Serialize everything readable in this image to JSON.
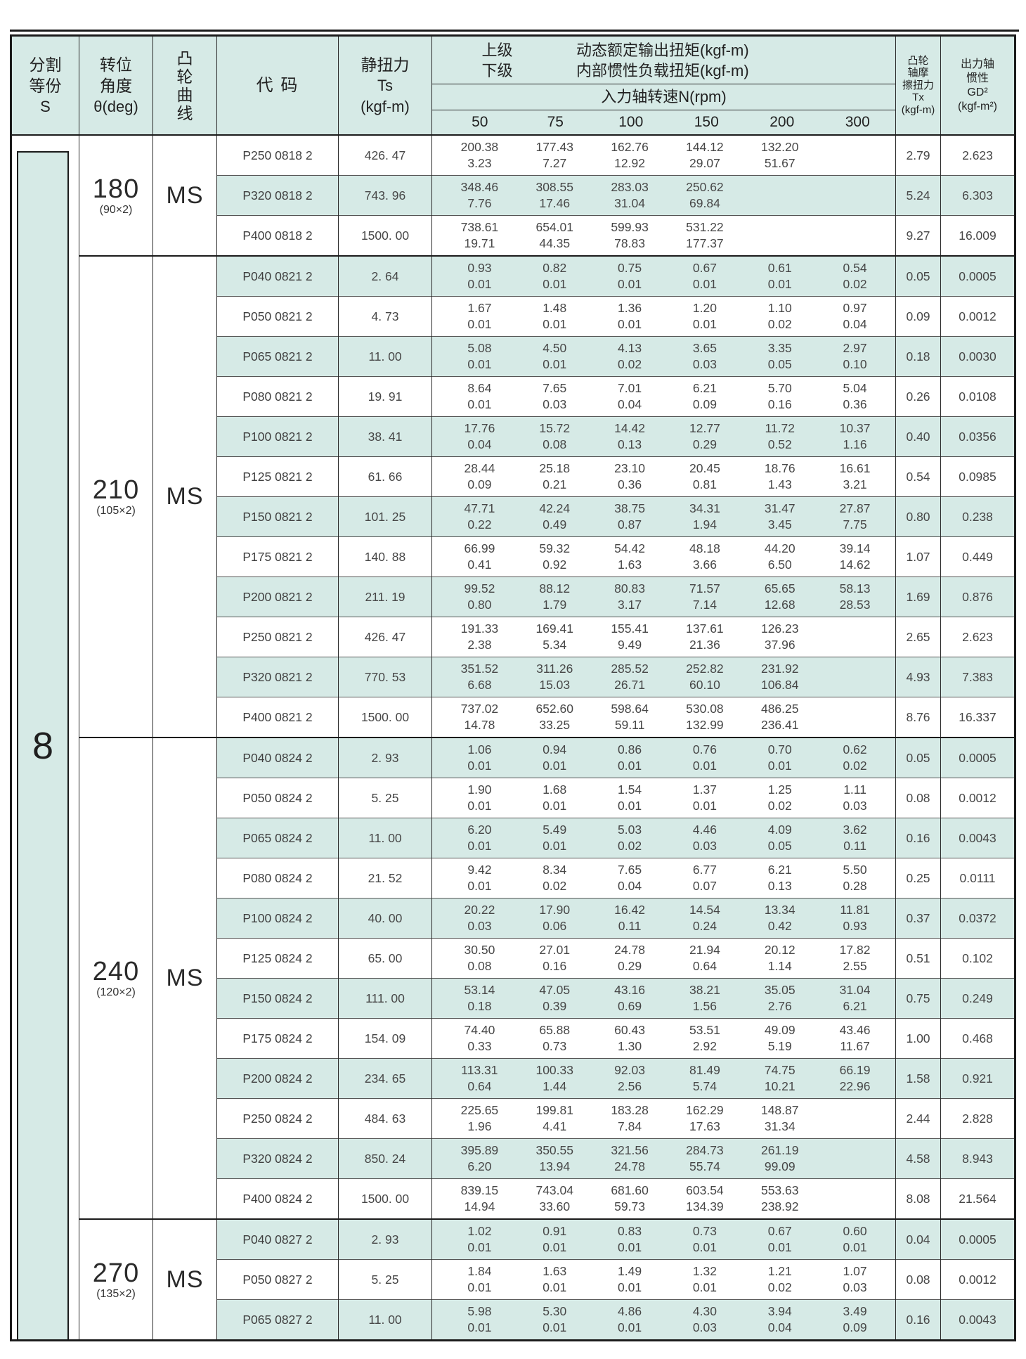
{
  "colors": {
    "highlight_teal": "#d6eae6",
    "border_dark": "#1b1b1b"
  },
  "table": {
    "division_value": "8",
    "header": {
      "division": [
        "分割",
        "等份",
        "S"
      ],
      "angle": [
        "转位",
        "角度",
        "θ(deg)"
      ],
      "curve": [
        "凸",
        "轮",
        "曲",
        "线"
      ],
      "code": "代 码",
      "static_torque": [
        "静扭力",
        "Ts",
        "(kgf-m)"
      ],
      "upper_label": "上级",
      "lower_label": "下级",
      "dynamic_torque_label": "动态额定输出扭矩(kgf-m)",
      "inertia_torque_label": "内部惯性负载扭矩(kgf-m)",
      "rpm_label": "入力轴转速N(rpm)",
      "rpm_speeds": [
        "50",
        "75",
        "100",
        "150",
        "200",
        "300"
      ],
      "cam_friction": [
        "凸轮",
        "轴摩",
        "擦扭力",
        "Tx",
        "(kgf-m)"
      ],
      "output_inertia": [
        "出力轴",
        "惯性",
        "GD²",
        "(kgf-m²)"
      ]
    },
    "groups": [
      {
        "angle": "180",
        "angle_sub": "(90×2)",
        "curve": "MS",
        "rows": [
          {
            "code": "P250 0818 2",
            "ts": "426. 47",
            "upper": [
              "200.38",
              "177.43",
              "162.76",
              "144.12",
              "132.20",
              ""
            ],
            "lower": [
              "3.23",
              "7.27",
              "12.92",
              "29.07",
              "51.67",
              ""
            ],
            "tx": "2.79",
            "gd2": "2.623"
          },
          {
            "code": "P320 0818 2",
            "ts": "743. 96",
            "upper": [
              "348.46",
              "308.55",
              "283.03",
              "250.62",
              "",
              ""
            ],
            "lower": [
              "7.76",
              "17.46",
              "31.04",
              "69.84",
              "",
              ""
            ],
            "tx": "5.24",
            "gd2": "6.303"
          },
          {
            "code": "P400 0818 2",
            "ts": "1500. 00",
            "upper": [
              "738.61",
              "654.01",
              "599.93",
              "531.22",
              "",
              ""
            ],
            "lower": [
              "19.71",
              "44.35",
              "78.83",
              "177.37",
              "",
              ""
            ],
            "tx": "9.27",
            "gd2": "16.009"
          }
        ]
      },
      {
        "angle": "210",
        "angle_sub": "(105×2)",
        "curve": "MS",
        "rows": [
          {
            "code": "P040 0821 2",
            "ts": "2. 64",
            "upper": [
              "0.93",
              "0.82",
              "0.75",
              "0.67",
              "0.61",
              "0.54"
            ],
            "lower": [
              "0.01",
              "0.01",
              "0.01",
              "0.01",
              "0.01",
              "0.02"
            ],
            "tx": "0.05",
            "gd2": "0.0005"
          },
          {
            "code": "P050 0821 2",
            "ts": "4. 73",
            "upper": [
              "1.67",
              "1.48",
              "1.36",
              "1.20",
              "1.10",
              "0.97"
            ],
            "lower": [
              "0.01",
              "0.01",
              "0.01",
              "0.01",
              "0.02",
              "0.04"
            ],
            "tx": "0.09",
            "gd2": "0.0012"
          },
          {
            "code": "P065 0821 2",
            "ts": "11. 00",
            "upper": [
              "5.08",
              "4.50",
              "4.13",
              "3.65",
              "3.35",
              "2.97"
            ],
            "lower": [
              "0.01",
              "0.01",
              "0.02",
              "0.03",
              "0.05",
              "0.10"
            ],
            "tx": "0.18",
            "gd2": "0.0030"
          },
          {
            "code": "P080 0821 2",
            "ts": "19. 91",
            "upper": [
              "8.64",
              "7.65",
              "7.01",
              "6.21",
              "5.70",
              "5.04"
            ],
            "lower": [
              "0.01",
              "0.03",
              "0.04",
              "0.09",
              "0.16",
              "0.36"
            ],
            "tx": "0.26",
            "gd2": "0.0108"
          },
          {
            "code": "P100 0821 2",
            "ts": "38. 41",
            "upper": [
              "17.76",
              "15.72",
              "14.42",
              "12.77",
              "11.72",
              "10.37"
            ],
            "lower": [
              "0.04",
              "0.08",
              "0.13",
              "0.29",
              "0.52",
              "1.16"
            ],
            "tx": "0.40",
            "gd2": "0.0356"
          },
          {
            "code": "P125 0821 2",
            "ts": "61. 66",
            "upper": [
              "28.44",
              "25.18",
              "23.10",
              "20.45",
              "18.76",
              "16.61"
            ],
            "lower": [
              "0.09",
              "0.21",
              "0.36",
              "0.81",
              "1.43",
              "3.21"
            ],
            "tx": "0.54",
            "gd2": "0.0985"
          },
          {
            "code": "P150 0821 2",
            "ts": "101. 25",
            "upper": [
              "47.71",
              "42.24",
              "38.75",
              "34.31",
              "31.47",
              "27.87"
            ],
            "lower": [
              "0.22",
              "0.49",
              "0.87",
              "1.94",
              "3.45",
              "7.75"
            ],
            "tx": "0.80",
            "gd2": "0.238"
          },
          {
            "code": "P175 0821 2",
            "ts": "140. 88",
            "upper": [
              "66.99",
              "59.32",
              "54.42",
              "48.18",
              "44.20",
              "39.14"
            ],
            "lower": [
              "0.41",
              "0.92",
              "1.63",
              "3.66",
              "6.50",
              "14.62"
            ],
            "tx": "1.07",
            "gd2": "0.449"
          },
          {
            "code": "P200 0821 2",
            "ts": "211. 19",
            "upper": [
              "99.52",
              "88.12",
              "80.83",
              "71.57",
              "65.65",
              "58.13"
            ],
            "lower": [
              "0.80",
              "1.79",
              "3.17",
              "7.14",
              "12.68",
              "28.53"
            ],
            "tx": "1.69",
            "gd2": "0.876"
          },
          {
            "code": "P250 0821 2",
            "ts": "426. 47",
            "upper": [
              "191.33",
              "169.41",
              "155.41",
              "137.61",
              "126.23",
              ""
            ],
            "lower": [
              "2.38",
              "5.34",
              "9.49",
              "21.36",
              "37.96",
              ""
            ],
            "tx": "2.65",
            "gd2": "2.623"
          },
          {
            "code": "P320 0821 2",
            "ts": "770. 53",
            "upper": [
              "351.52",
              "311.26",
              "285.52",
              "252.82",
              "231.92",
              ""
            ],
            "lower": [
              "6.68",
              "15.03",
              "26.71",
              "60.10",
              "106.84",
              ""
            ],
            "tx": "4.93",
            "gd2": "7.383"
          },
          {
            "code": "P400 0821 2",
            "ts": "1500. 00",
            "upper": [
              "737.02",
              "652.60",
              "598.64",
              "530.08",
              "486.25",
              ""
            ],
            "lower": [
              "14.78",
              "33.25",
              "59.11",
              "132.99",
              "236.41",
              ""
            ],
            "tx": "8.76",
            "gd2": "16.337"
          }
        ]
      },
      {
        "angle": "240",
        "angle_sub": "(120×2)",
        "curve": "MS",
        "rows": [
          {
            "code": "P040 0824 2",
            "ts": "2. 93",
            "upper": [
              "1.06",
              "0.94",
              "0.86",
              "0.76",
              "0.70",
              "0.62"
            ],
            "lower": [
              "0.01",
              "0.01",
              "0.01",
              "0.01",
              "0.01",
              "0.02"
            ],
            "tx": "0.05",
            "gd2": "0.0005"
          },
          {
            "code": "P050 0824 2",
            "ts": "5. 25",
            "upper": [
              "1.90",
              "1.68",
              "1.54",
              "1.37",
              "1.25",
              "1.11"
            ],
            "lower": [
              "0.01",
              "0.01",
              "0.01",
              "0.01",
              "0.02",
              "0.03"
            ],
            "tx": "0.08",
            "gd2": "0.0012"
          },
          {
            "code": "P065 0824 2",
            "ts": "11. 00",
            "upper": [
              "6.20",
              "5.49",
              "5.03",
              "4.46",
              "4.09",
              "3.62"
            ],
            "lower": [
              "0.01",
              "0.01",
              "0.02",
              "0.03",
              "0.05",
              "0.11"
            ],
            "tx": "0.16",
            "gd2": "0.0043"
          },
          {
            "code": "P080 0824 2",
            "ts": "21. 52",
            "upper": [
              "9.42",
              "8.34",
              "7.65",
              "6.77",
              "6.21",
              "5.50"
            ],
            "lower": [
              "0.01",
              "0.02",
              "0.04",
              "0.07",
              "0.13",
              "0.28"
            ],
            "tx": "0.25",
            "gd2": "0.0111"
          },
          {
            "code": "P100 0824 2",
            "ts": "40. 00",
            "upper": [
              "20.22",
              "17.90",
              "16.42",
              "14.54",
              "13.34",
              "11.81"
            ],
            "lower": [
              "0.03",
              "0.06",
              "0.11",
              "0.24",
              "0.42",
              "0.93"
            ],
            "tx": "0.37",
            "gd2": "0.0372"
          },
          {
            "code": "P125 0824 2",
            "ts": "65. 00",
            "upper": [
              "30.50",
              "27.01",
              "24.78",
              "21.94",
              "20.12",
              "17.82"
            ],
            "lower": [
              "0.08",
              "0.16",
              "0.29",
              "0.64",
              "1.14",
              "2.55"
            ],
            "tx": "0.51",
            "gd2": "0.102"
          },
          {
            "code": "P150 0824 2",
            "ts": "111. 00",
            "upper": [
              "53.14",
              "47.05",
              "43.16",
              "38.21",
              "35.05",
              "31.04"
            ],
            "lower": [
              "0.18",
              "0.39",
              "0.69",
              "1.56",
              "2.76",
              "6.21"
            ],
            "tx": "0.75",
            "gd2": "0.249"
          },
          {
            "code": "P175 0824 2",
            "ts": "154. 09",
            "upper": [
              "74.40",
              "65.88",
              "60.43",
              "53.51",
              "49.09",
              "43.46"
            ],
            "lower": [
              "0.33",
              "0.73",
              "1.30",
              "2.92",
              "5.19",
              "11.67"
            ],
            "tx": "1.00",
            "gd2": "0.468"
          },
          {
            "code": "P200 0824 2",
            "ts": "234. 65",
            "upper": [
              "113.31",
              "100.33",
              "92.03",
              "81.49",
              "74.75",
              "66.19"
            ],
            "lower": [
              "0.64",
              "1.44",
              "2.56",
              "5.74",
              "10.21",
              "22.96"
            ],
            "tx": "1.58",
            "gd2": "0.921"
          },
          {
            "code": "P250 0824 2",
            "ts": "484. 63",
            "upper": [
              "225.65",
              "199.81",
              "183.28",
              "162.29",
              "148.87",
              ""
            ],
            "lower": [
              "1.96",
              "4.41",
              "7.84",
              "17.63",
              "31.34",
              ""
            ],
            "tx": "2.44",
            "gd2": "2.828"
          },
          {
            "code": "P320 0824 2",
            "ts": "850. 24",
            "upper": [
              "395.89",
              "350.55",
              "321.56",
              "284.73",
              "261.19",
              ""
            ],
            "lower": [
              "6.20",
              "13.94",
              "24.78",
              "55.74",
              "99.09",
              ""
            ],
            "tx": "4.58",
            "gd2": "8.943"
          },
          {
            "code": "P400 0824 2",
            "ts": "1500. 00",
            "upper": [
              "839.15",
              "743.04",
              "681.60",
              "603.54",
              "553.63",
              ""
            ],
            "lower": [
              "14.94",
              "33.60",
              "59.73",
              "134.39",
              "238.92",
              ""
            ],
            "tx": "8.08",
            "gd2": "21.564"
          }
        ]
      },
      {
        "angle": "270",
        "angle_sub": "(135×2)",
        "curve": "MS",
        "rows": [
          {
            "code": "P040 0827 2",
            "ts": "2. 93",
            "upper": [
              "1.02",
              "0.91",
              "0.83",
              "0.73",
              "0.67",
              "0.60"
            ],
            "lower": [
              "0.01",
              "0.01",
              "0.01",
              "0.01",
              "0.01",
              "0.01"
            ],
            "tx": "0.04",
            "gd2": "0.0005"
          },
          {
            "code": "P050 0827 2",
            "ts": "5. 25",
            "upper": [
              "1.84",
              "1.63",
              "1.49",
              "1.32",
              "1.21",
              "1.07"
            ],
            "lower": [
              "0.01",
              "0.01",
              "0.01",
              "0.01",
              "0.02",
              "0.03"
            ],
            "tx": "0.08",
            "gd2": "0.0012"
          },
          {
            "code": "P065 0827 2",
            "ts": "11. 00",
            "upper": [
              "5.98",
              "5.30",
              "4.86",
              "4.30",
              "3.94",
              "3.49"
            ],
            "lower": [
              "0.01",
              "0.01",
              "0.01",
              "0.03",
              "0.04",
              "0.09"
            ],
            "tx": "0.16",
            "gd2": "0.0043"
          }
        ]
      }
    ]
  }
}
